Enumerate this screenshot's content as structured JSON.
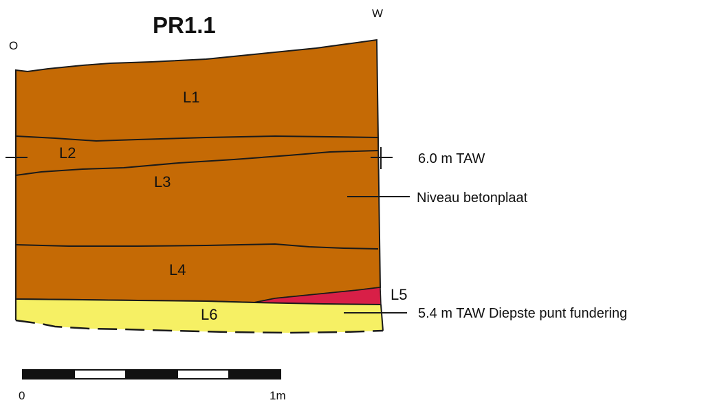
{
  "title": "PR1.1",
  "orientation": {
    "left": "O",
    "right": "W"
  },
  "layers": [
    {
      "id": "L1",
      "label": "L1",
      "color": "#C56A05"
    },
    {
      "id": "L2",
      "label": "L2",
      "color": "#C56A05"
    },
    {
      "id": "L3",
      "label": "L3",
      "color": "#C56A05"
    },
    {
      "id": "L4",
      "label": "L4",
      "color": "#C56A05"
    },
    {
      "id": "L5",
      "label": "L5",
      "color": "#D81F47"
    },
    {
      "id": "L6",
      "label": "L6",
      "color": "#F6F064"
    }
  ],
  "annotations": {
    "reference_level": "6.0 m TAW",
    "concrete_slab": "Niveau betonplaat",
    "deepest_foundation": "5.4 m TAW Diepste punt fundering"
  },
  "scale_bar": {
    "start_label": "0",
    "end_label": "1m",
    "segments": 5
  },
  "colors": {
    "outline": "#1a1a1a",
    "scale_dark": "#111111",
    "scale_light": "#ffffff"
  }
}
